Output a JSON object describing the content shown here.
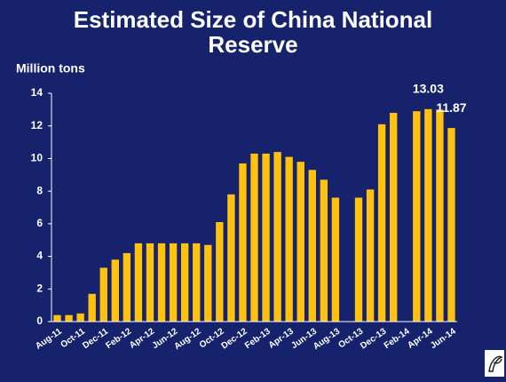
{
  "chart_data": {
    "type": "bar",
    "title": "Estimated Size of China National Reserve",
    "y_label": "Million tons",
    "categories": [
      "Aug-11",
      null,
      "Oct-11",
      null,
      "Dec-11",
      null,
      "Feb-12",
      null,
      "Apr-12",
      null,
      "Jun-12",
      null,
      "Aug-12",
      null,
      "Oct-12",
      null,
      "Dec-12",
      null,
      "Feb-13",
      null,
      "Apr-13",
      null,
      "Jun-13",
      null,
      "Aug-13",
      null,
      "Oct-13",
      null,
      "Dec-13",
      null,
      "Feb-14",
      null,
      "Apr-14",
      null,
      "Jun-14"
    ],
    "values": [
      0.4,
      0.4,
      0.5,
      1.7,
      3.3,
      3.8,
      4.2,
      4.8,
      4.8,
      4.8,
      4.8,
      4.8,
      4.8,
      4.7,
      6.1,
      7.8,
      9.7,
      10.3,
      10.3,
      10.4,
      10.1,
      9.8,
      9.3,
      8.7,
      7.6,
      null,
      7.6,
      8.1,
      12.1,
      12.8,
      null,
      12.9,
      13.03,
      13.0,
      11.87
    ],
    "value_labels": [
      null,
      null,
      null,
      null,
      null,
      null,
      null,
      null,
      null,
      null,
      null,
      null,
      null,
      null,
      null,
      null,
      null,
      null,
      null,
      null,
      null,
      null,
      null,
      null,
      null,
      null,
      null,
      null,
      null,
      null,
      null,
      null,
      "13.03",
      null,
      "11.87"
    ],
    "color": "#ffc20e",
    "ylim": [
      0,
      14
    ],
    "yticks": [
      0,
      2,
      4,
      6,
      8,
      10,
      12,
      14
    ],
    "grid": false
  }
}
